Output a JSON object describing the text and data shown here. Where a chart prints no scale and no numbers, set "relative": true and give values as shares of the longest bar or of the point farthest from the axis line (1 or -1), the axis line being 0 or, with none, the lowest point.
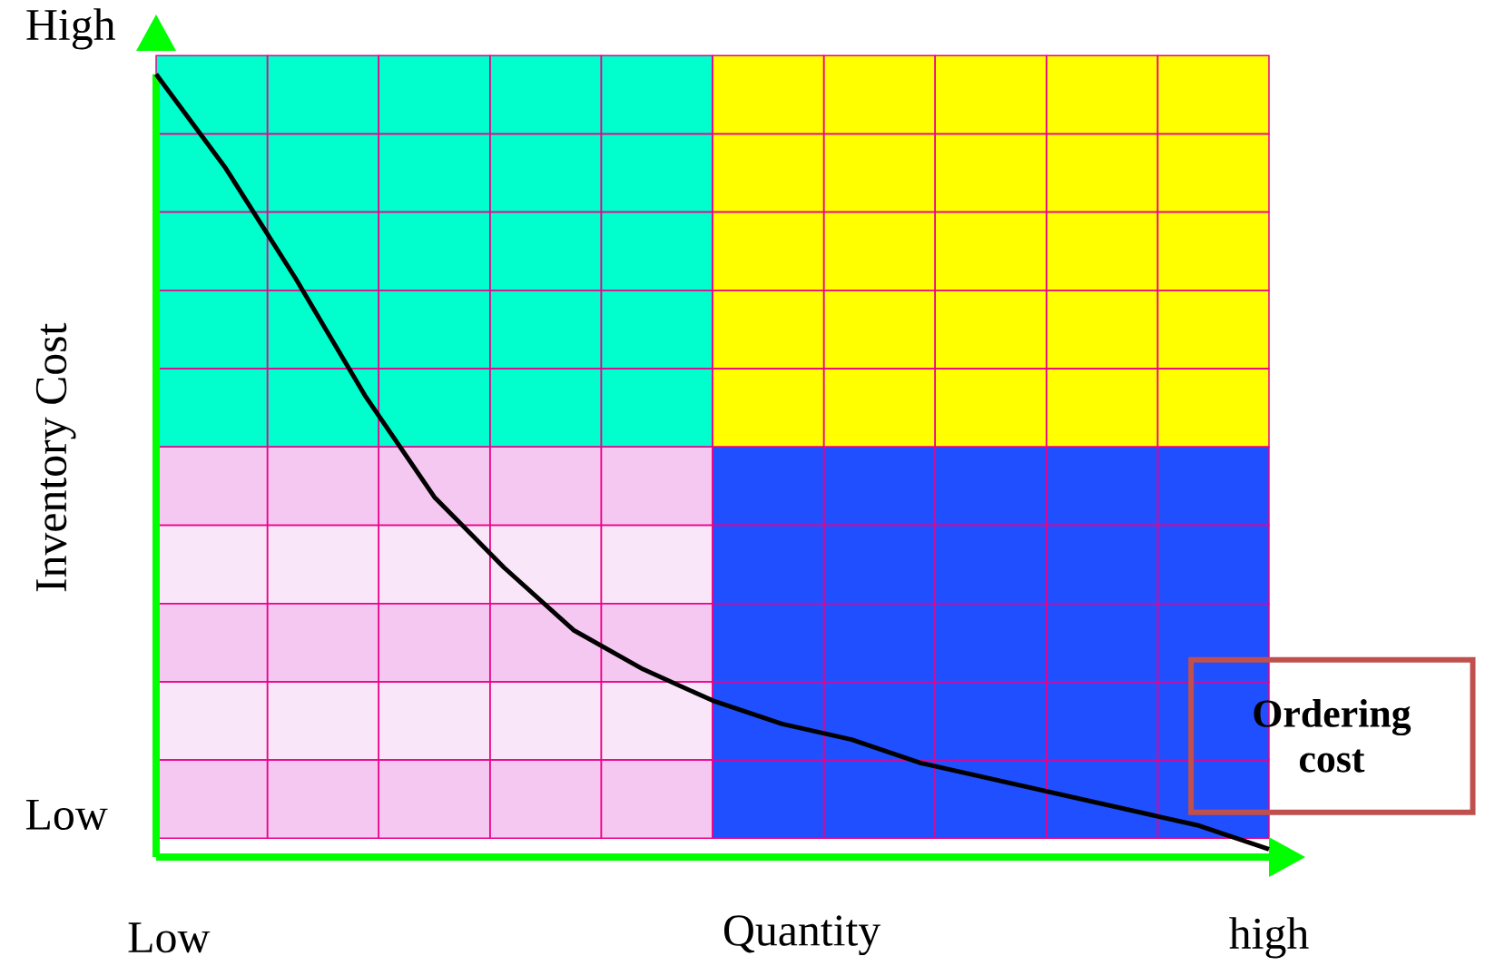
{
  "chart_data": {
    "type": "line",
    "relative": true,
    "xlabel": "Quantity",
    "ylabel": "Inventory Cost",
    "categories": [
      null,
      null,
      null,
      null,
      null,
      null,
      null,
      null,
      null,
      null,
      null,
      null,
      null,
      null,
      null,
      null,
      null
    ],
    "values": [
      1.0,
      0.88,
      0.74,
      0.59,
      0.46,
      0.37,
      0.29,
      0.24,
      0.2,
      0.17,
      0.15,
      0.12,
      0.1,
      0.08,
      0.06,
      0.04,
      0.01
    ],
    "color": "#000000",
    "annotations": [
      "High",
      "Low",
      "Low",
      "high",
      "Ordering cost"
    ]
  }
}
